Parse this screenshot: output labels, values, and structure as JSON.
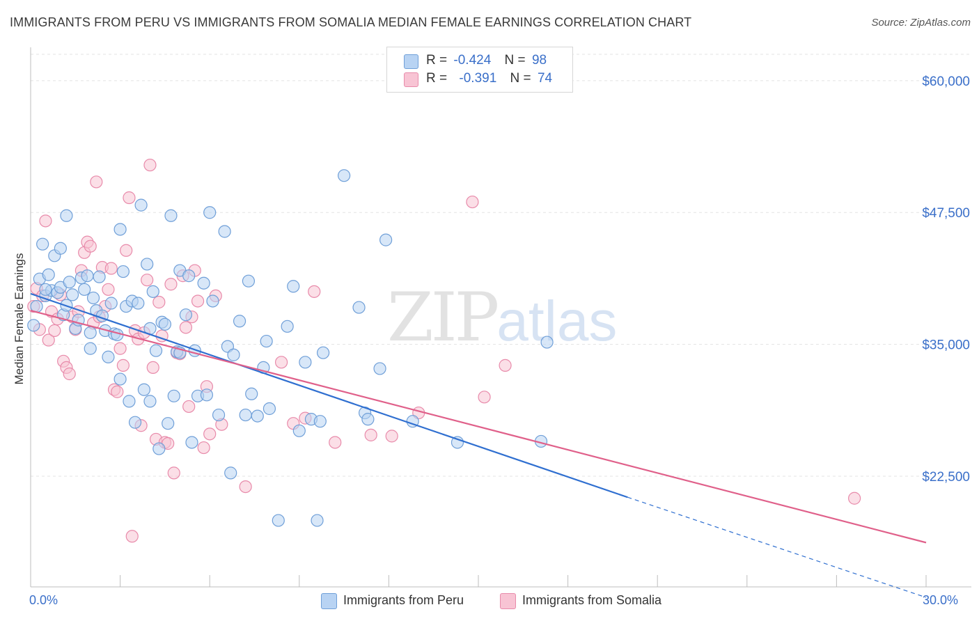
{
  "title": "IMMIGRANTS FROM PERU VS IMMIGRANTS FROM SOMALIA MEDIAN FEMALE EARNINGS CORRELATION CHART",
  "source": "Source: ZipAtlas.com",
  "watermark": {
    "zip": "ZIP",
    "atlas": "atlas"
  },
  "legend": {
    "peru": {
      "r_label": "R =",
      "r_value": "-0.424",
      "n_label": "N =",
      "n_value": "98"
    },
    "somalia": {
      "r_label": "R =",
      "r_value": "-0.391",
      "n_label": "N =",
      "n_value": "74"
    }
  },
  "colors": {
    "peru_fill": "#b8d3f3",
    "peru_stroke": "#6f9fd8",
    "peru_line": "#2f6fd0",
    "somalia_fill": "#f8c4d4",
    "somalia_stroke": "#e88aaa",
    "somalia_line": "#e0608a",
    "grid": "#e3e3e3",
    "tick_label": "#3a6fc9"
  },
  "chart_data": {
    "type": "scatter",
    "title": "IMMIGRANTS FROM PERU VS IMMIGRANTS FROM SOMALIA MEDIAN FEMALE EARNINGS CORRELATION CHART",
    "xlabel": "",
    "ylabel": "Median Female Earnings",
    "xlim": [
      0,
      30
    ],
    "ylim": [
      12000,
      62500
    ],
    "x_tick_labels": [
      "0.0%",
      "30.0%"
    ],
    "y_ticks": [
      22500,
      35000,
      47500,
      60000
    ],
    "y_tick_labels": [
      "$22,500",
      "$35,000",
      "$47,500",
      "$60,000"
    ],
    "grid": true,
    "legend_position": "top-center",
    "series": [
      {
        "name": "Immigrants from Peru",
        "trend": {
          "x_start": 0,
          "y_start": 39800,
          "x_end": 20,
          "y_end": 20500,
          "dashed_x_end": 30,
          "dashed_y_end": 11000
        },
        "points": [
          [
            0.1,
            36800
          ],
          [
            0.2,
            38600
          ],
          [
            0.3,
            41200
          ],
          [
            0.4,
            44500
          ],
          [
            0.5,
            39600
          ],
          [
            0.6,
            41600
          ],
          [
            0.7,
            40100
          ],
          [
            0.8,
            43400
          ],
          [
            0.9,
            39900
          ],
          [
            1.0,
            44100
          ],
          [
            1.0,
            40400
          ],
          [
            1.1,
            37800
          ],
          [
            1.2,
            47200
          ],
          [
            1.3,
            40900
          ],
          [
            1.4,
            39700
          ],
          [
            1.5,
            36500
          ],
          [
            1.6,
            37300
          ],
          [
            1.7,
            41300
          ],
          [
            1.8,
            40200
          ],
          [
            1.9,
            41500
          ],
          [
            2.0,
            36100
          ],
          [
            2.0,
            34600
          ],
          [
            2.1,
            39400
          ],
          [
            2.2,
            38200
          ],
          [
            2.3,
            41400
          ],
          [
            2.4,
            37700
          ],
          [
            2.5,
            36300
          ],
          [
            2.6,
            33800
          ],
          [
            2.7,
            38900
          ],
          [
            2.8,
            36000
          ],
          [
            2.9,
            35900
          ],
          [
            3.0,
            31700
          ],
          [
            3.0,
            45900
          ],
          [
            3.1,
            41900
          ],
          [
            3.2,
            38600
          ],
          [
            3.3,
            29600
          ],
          [
            3.4,
            39100
          ],
          [
            3.5,
            27600
          ],
          [
            3.6,
            38900
          ],
          [
            3.7,
            48200
          ],
          [
            3.8,
            30700
          ],
          [
            3.9,
            42600
          ],
          [
            4.0,
            29600
          ],
          [
            4.0,
            36500
          ],
          [
            4.1,
            40000
          ],
          [
            4.2,
            34400
          ],
          [
            4.3,
            25100
          ],
          [
            4.4,
            37100
          ],
          [
            4.5,
            36900
          ],
          [
            4.6,
            27500
          ],
          [
            4.7,
            47200
          ],
          [
            4.8,
            30100
          ],
          [
            4.9,
            34300
          ],
          [
            5.0,
            42000
          ],
          [
            5.0,
            34200
          ],
          [
            5.2,
            37800
          ],
          [
            5.3,
            41500
          ],
          [
            5.4,
            25700
          ],
          [
            5.5,
            34400
          ],
          [
            5.6,
            30100
          ],
          [
            5.8,
            40800
          ],
          [
            5.9,
            30200
          ],
          [
            6.0,
            47500
          ],
          [
            6.1,
            39100
          ],
          [
            6.3,
            28300
          ],
          [
            6.5,
            45700
          ],
          [
            6.6,
            34800
          ],
          [
            6.7,
            22800
          ],
          [
            6.8,
            34000
          ],
          [
            7.0,
            37200
          ],
          [
            7.2,
            28300
          ],
          [
            7.3,
            41000
          ],
          [
            7.4,
            30300
          ],
          [
            7.6,
            28200
          ],
          [
            7.8,
            32800
          ],
          [
            7.9,
            35300
          ],
          [
            8.0,
            28900
          ],
          [
            8.3,
            18300
          ],
          [
            8.6,
            36700
          ],
          [
            8.8,
            40500
          ],
          [
            9.0,
            26800
          ],
          [
            9.2,
            33300
          ],
          [
            9.4,
            27900
          ],
          [
            9.6,
            18300
          ],
          [
            9.7,
            27700
          ],
          [
            9.8,
            34200
          ],
          [
            10.5,
            51000
          ],
          [
            11.0,
            38500
          ],
          [
            11.2,
            28500
          ],
          [
            11.3,
            27900
          ],
          [
            11.7,
            32700
          ],
          [
            11.9,
            44900
          ],
          [
            12.8,
            27700
          ],
          [
            14.3,
            25700
          ],
          [
            17.1,
            25800
          ],
          [
            17.3,
            35200
          ],
          [
            0.5,
            40200
          ],
          [
            1.2,
            38700
          ]
        ]
      },
      {
        "name": "Immigrants from Somalia",
        "trend": {
          "x_start": 0,
          "y_start": 38200,
          "x_end": 30,
          "y_end": 16200
        },
        "points": [
          [
            0.1,
            38600
          ],
          [
            0.2,
            40300
          ],
          [
            0.3,
            36400
          ],
          [
            0.4,
            39600
          ],
          [
            0.5,
            46700
          ],
          [
            0.6,
            35400
          ],
          [
            0.7,
            38100
          ],
          [
            0.8,
            36300
          ],
          [
            0.9,
            37400
          ],
          [
            1.0,
            39700
          ],
          [
            1.1,
            33400
          ],
          [
            1.2,
            32800
          ],
          [
            1.3,
            32200
          ],
          [
            1.4,
            37600
          ],
          [
            1.5,
            36400
          ],
          [
            1.6,
            38100
          ],
          [
            1.7,
            42000
          ],
          [
            1.8,
            43700
          ],
          [
            1.9,
            44700
          ],
          [
            2.0,
            44300
          ],
          [
            2.1,
            37000
          ],
          [
            2.2,
            50400
          ],
          [
            2.3,
            37600
          ],
          [
            2.4,
            42300
          ],
          [
            2.5,
            38600
          ],
          [
            2.6,
            40200
          ],
          [
            2.7,
            42200
          ],
          [
            2.8,
            30700
          ],
          [
            2.9,
            30500
          ],
          [
            3.0,
            34600
          ],
          [
            3.1,
            33000
          ],
          [
            3.2,
            43900
          ],
          [
            3.3,
            48900
          ],
          [
            3.4,
            16800
          ],
          [
            3.5,
            36300
          ],
          [
            3.6,
            35500
          ],
          [
            3.7,
            27300
          ],
          [
            3.8,
            36100
          ],
          [
            3.9,
            41100
          ],
          [
            4.0,
            52000
          ],
          [
            4.1,
            32800
          ],
          [
            4.2,
            26000
          ],
          [
            4.3,
            39000
          ],
          [
            4.4,
            35800
          ],
          [
            4.5,
            25700
          ],
          [
            4.6,
            25600
          ],
          [
            4.7,
            40700
          ],
          [
            4.8,
            22800
          ],
          [
            4.9,
            34200
          ],
          [
            5.0,
            34100
          ],
          [
            5.1,
            41500
          ],
          [
            5.2,
            36600
          ],
          [
            5.3,
            29100
          ],
          [
            5.4,
            37600
          ],
          [
            5.5,
            42000
          ],
          [
            5.6,
            39100
          ],
          [
            5.8,
            25200
          ],
          [
            5.9,
            31000
          ],
          [
            6.0,
            26500
          ],
          [
            6.2,
            39600
          ],
          [
            6.4,
            27400
          ],
          [
            7.2,
            21500
          ],
          [
            8.4,
            33300
          ],
          [
            8.8,
            27500
          ],
          [
            9.2,
            28000
          ],
          [
            9.5,
            40000
          ],
          [
            10.2,
            25700
          ],
          [
            11.4,
            26400
          ],
          [
            12.1,
            26300
          ],
          [
            13.0,
            28500
          ],
          [
            14.8,
            48500
          ],
          [
            15.2,
            30000
          ],
          [
            15.9,
            33000
          ],
          [
            27.6,
            20400
          ]
        ]
      }
    ]
  }
}
